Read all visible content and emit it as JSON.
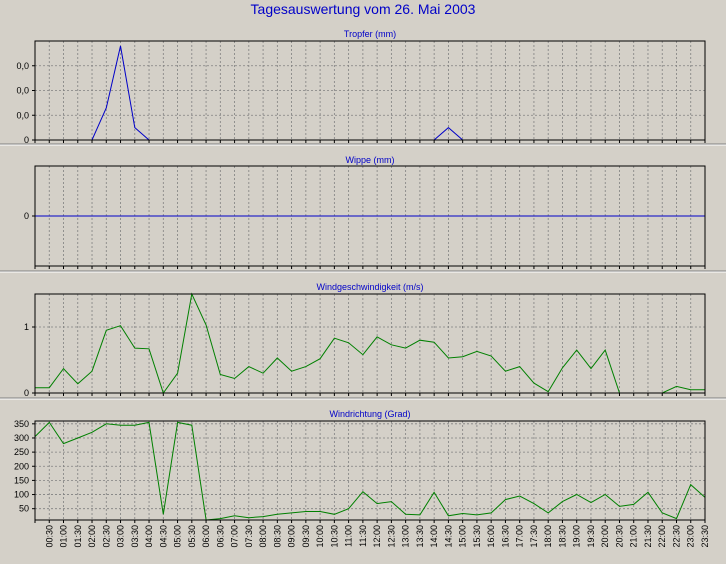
{
  "title": "Tagesauswertung vom 26. Mai 2003",
  "colors": {
    "background": "#d4d0c8",
    "title": "#0000c8",
    "blue_series": "#0000c8",
    "green_series": "#008000",
    "grid": "#808080"
  },
  "chart_data": [
    {
      "type": "line",
      "title": "Tropfer (mm)",
      "ytick_labels": [
        "0",
        "0,0",
        "0,0",
        "0,0"
      ],
      "color": "#0000c8",
      "ylim": [
        0,
        0.4
      ],
      "x": [
        "00:00",
        "00:30",
        "01:00",
        "01:30",
        "02:00",
        "02:30",
        "03:00",
        "03:30",
        "04:00",
        "04:30",
        "05:00",
        "05:30",
        "06:00",
        "06:30",
        "07:00",
        "07:30",
        "08:00",
        "08:30",
        "09:00",
        "09:30",
        "10:00",
        "10:30",
        "11:00",
        "11:30",
        "12:00",
        "12:30",
        "13:00",
        "13:30",
        "14:00",
        "14:30",
        "15:00",
        "15:30",
        "16:00",
        "16:30",
        "17:00",
        "17:30",
        "18:00",
        "18:30",
        "19:00",
        "19:30",
        "20:00",
        "20:30",
        "21:00",
        "21:30",
        "22:00",
        "22:30",
        "23:00",
        "23:30"
      ],
      "values": [
        0,
        0,
        0,
        0,
        0,
        0.13,
        0.38,
        0.05,
        0,
        0,
        0,
        0,
        0,
        0,
        0,
        0,
        0,
        0,
        0,
        0,
        0,
        0,
        0,
        0,
        0,
        0,
        0,
        0,
        0,
        0.05,
        0,
        0,
        0,
        0,
        0,
        0,
        0,
        0,
        0,
        0,
        0,
        0,
        0,
        0,
        0,
        0,
        0,
        0
      ]
    },
    {
      "type": "line",
      "title": "Wippe (mm)",
      "ytick_labels": [
        "0"
      ],
      "color": "#0000c8",
      "ylim": [
        -1,
        1
      ],
      "x": [
        "00:00",
        "00:30",
        "01:00",
        "01:30",
        "02:00",
        "02:30",
        "03:00",
        "03:30",
        "04:00",
        "04:30",
        "05:00",
        "05:30",
        "06:00",
        "06:30",
        "07:00",
        "07:30",
        "08:00",
        "08:30",
        "09:00",
        "09:30",
        "10:00",
        "10:30",
        "11:00",
        "11:30",
        "12:00",
        "12:30",
        "13:00",
        "13:30",
        "14:00",
        "14:30",
        "15:00",
        "15:30",
        "16:00",
        "16:30",
        "17:00",
        "17:30",
        "18:00",
        "18:30",
        "19:00",
        "19:30",
        "20:00",
        "20:30",
        "21:00",
        "21:30",
        "22:00",
        "22:30",
        "23:00",
        "23:30"
      ],
      "values": [
        0,
        0,
        0,
        0,
        0,
        0,
        0,
        0,
        0,
        0,
        0,
        0,
        0,
        0,
        0,
        0,
        0,
        0,
        0,
        0,
        0,
        0,
        0,
        0,
        0,
        0,
        0,
        0,
        0,
        0,
        0,
        0,
        0,
        0,
        0,
        0,
        0,
        0,
        0,
        0,
        0,
        0,
        0,
        0,
        0,
        0,
        0,
        0
      ]
    },
    {
      "type": "line",
      "title": "Windgeschwindigkeit (m/s)",
      "ytick_labels": [
        "0",
        "1"
      ],
      "color": "#008000",
      "ylim": [
        0,
        1.5
      ],
      "x": [
        "00:00",
        "00:30",
        "01:00",
        "01:30",
        "02:00",
        "02:30",
        "03:00",
        "03:30",
        "04:00",
        "04:30",
        "05:00",
        "05:30",
        "06:00",
        "06:30",
        "07:00",
        "07:30",
        "08:00",
        "08:30",
        "09:00",
        "09:30",
        "10:00",
        "10:30",
        "11:00",
        "11:30",
        "12:00",
        "12:30",
        "13:00",
        "13:30",
        "14:00",
        "14:30",
        "15:00",
        "15:30",
        "16:00",
        "16:30",
        "17:00",
        "17:30",
        "18:00",
        "18:30",
        "19:00",
        "19:30",
        "20:00",
        "20:30",
        "21:00",
        "21:30",
        "22:00",
        "22:30",
        "23:00",
        "23:30"
      ],
      "values": [
        0.08,
        0.08,
        0.37,
        0.14,
        0.33,
        0.95,
        1.02,
        0.68,
        0.67,
        0.0,
        0.3,
        1.5,
        1.03,
        0.28,
        0.22,
        0.4,
        0.3,
        0.53,
        0.33,
        0.4,
        0.52,
        0.83,
        0.76,
        0.58,
        0.85,
        0.73,
        0.68,
        0.8,
        0.77,
        0.53,
        0.55,
        0.63,
        0.56,
        0.33,
        0.4,
        0.15,
        0.02,
        0.38,
        0.65,
        0.37,
        0.65,
        0.0,
        0.0,
        0.0,
        0.0,
        0.1,
        0.05,
        0.05
      ]
    },
    {
      "type": "line",
      "title": "Windrichtung (Grad)",
      "ytick_labels": [
        "50",
        "100",
        "150",
        "200",
        "250",
        "300",
        "350"
      ],
      "color": "#008000",
      "ylim": [
        10,
        360
      ],
      "x": [
        "00:00",
        "00:30",
        "01:00",
        "01:30",
        "02:00",
        "02:30",
        "03:00",
        "03:30",
        "04:00",
        "04:30",
        "05:00",
        "05:30",
        "06:00",
        "06:30",
        "07:00",
        "07:30",
        "08:00",
        "08:30",
        "09:00",
        "09:30",
        "10:00",
        "10:30",
        "11:00",
        "11:30",
        "12:00",
        "12:30",
        "13:00",
        "13:30",
        "14:00",
        "14:30",
        "15:00",
        "15:30",
        "16:00",
        "16:30",
        "17:00",
        "17:30",
        "18:00",
        "18:30",
        "19:00",
        "19:30",
        "20:00",
        "20:30",
        "21:00",
        "21:30",
        "22:00",
        "22:30",
        "23:00",
        "23:30"
      ],
      "values": [
        305,
        355,
        280,
        300,
        320,
        350,
        345,
        345,
        355,
        30,
        355,
        345,
        10,
        15,
        25,
        18,
        22,
        30,
        35,
        40,
        40,
        30,
        50,
        110,
        68,
        75,
        30,
        28,
        108,
        25,
        33,
        28,
        35,
        82,
        95,
        68,
        35,
        75,
        100,
        72,
        100,
        58,
        65,
        108,
        35,
        15,
        135,
        90
      ]
    }
  ],
  "xtick_labels": [
    "00:30",
    "01:00",
    "01:30",
    "02:00",
    "02:30",
    "03:00",
    "03:30",
    "04:00",
    "04:30",
    "05:00",
    "05:30",
    "06:00",
    "06:30",
    "07:00",
    "07:30",
    "08:00",
    "08:30",
    "09:00",
    "09:30",
    "10:00",
    "10:30",
    "11:00",
    "11:30",
    "12:00",
    "12:30",
    "13:00",
    "13:30",
    "14:00",
    "14:30",
    "15:00",
    "15:30",
    "16:00",
    "16:30",
    "17:00",
    "17:30",
    "18:00",
    "18:30",
    "19:00",
    "19:30",
    "20:00",
    "20:30",
    "21:00",
    "21:30",
    "22:00",
    "22:30",
    "23:00",
    "23:30"
  ]
}
